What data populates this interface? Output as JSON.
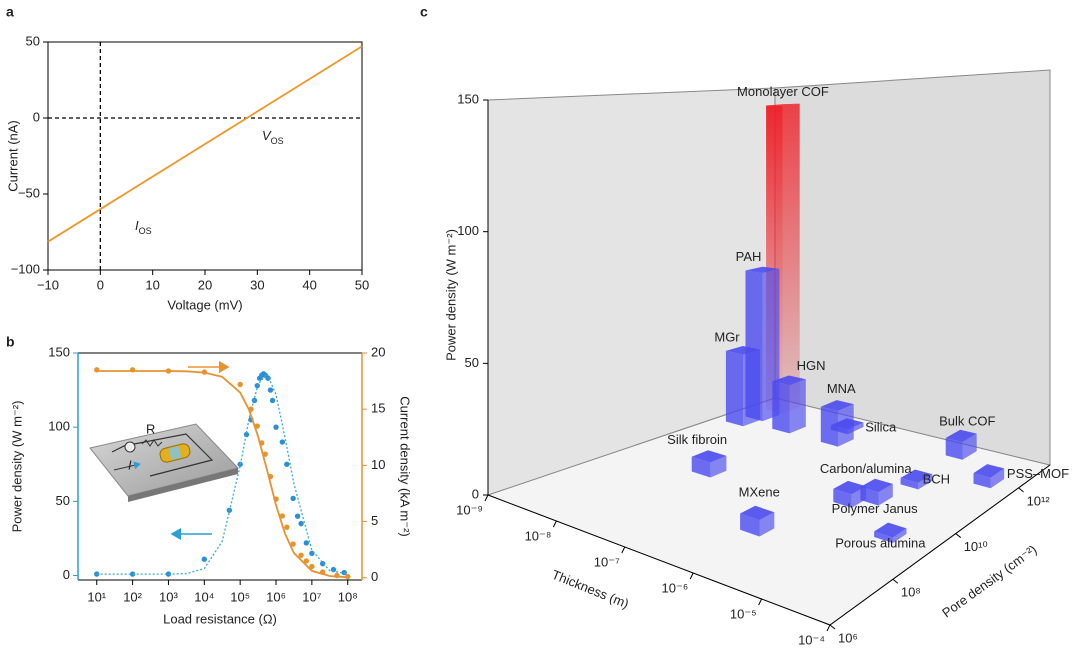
{
  "chart_data": [
    {
      "type": "line",
      "panel": "a",
      "x_label": "Voltage (mV)",
      "y_label": "Current (nA)",
      "xlim": [
        -10,
        50
      ],
      "ylim": [
        -100,
        50
      ],
      "xticks": [
        {
          "value": -10,
          "label": "−10"
        },
        0,
        10,
        20,
        30,
        40,
        50
      ],
      "yticks": [
        {
          "value": -100,
          "label": "−100"
        },
        {
          "value": -50,
          "label": "−50"
        },
        0,
        50
      ],
      "vline": 0,
      "hline": 0,
      "series": [
        {
          "color": "#f0962a",
          "x": [
            -10,
            0,
            28,
            50
          ],
          "values": [
            -81.4,
            -60,
            0,
            47.1
          ]
        }
      ],
      "annotations": [
        {
          "text": "V",
          "sub": "OS"
        },
        {
          "text": "I",
          "sub": "OS"
        }
      ]
    },
    {
      "type": "scatter",
      "panel": "b",
      "x_label": "Load resistance (Ω)",
      "y_label": "Power density (W m⁻²)",
      "y2_label": "Current density (kA m⁻²)",
      "log_x": true,
      "xlim": [
        3,
        250000000
      ],
      "ylim": [
        -3,
        150
      ],
      "y2lim": [
        -0.2,
        20
      ],
      "xticks": [
        {
          "value": 10,
          "label": "10¹"
        },
        {
          "value": 100,
          "label": "10²"
        },
        {
          "value": 1000,
          "label": "10³"
        },
        {
          "value": 10000,
          "label": "10⁴"
        },
        {
          "value": 100000,
          "label": "10⁵"
        },
        {
          "value": 1000000,
          "label": "10⁶"
        },
        {
          "value": 10000000,
          "label": "10⁷"
        },
        {
          "value": 100000000,
          "label": "10⁸"
        }
      ],
      "yticks": [
        0,
        50,
        100,
        150
      ],
      "y2ticks": [
        0,
        5,
        10,
        15,
        20
      ],
      "y_color": "#2a9fd6",
      "y2_color": "#e8922e",
      "series": [
        {
          "kind": "scatter",
          "axis": "y",
          "color": "#2a8fd6",
          "x": [
            10,
            100,
            1000,
            10000,
            50000,
            100000,
            150000,
            200000,
            250000,
            300000,
            350000,
            400000,
            450000,
            500000,
            600000,
            700000,
            800000,
            1000000,
            1500000,
            2000000,
            3000000,
            4000000,
            5000000,
            7000000,
            10000000,
            20000000,
            40000000,
            80000000
          ],
          "values": [
            1,
            1,
            1,
            11,
            44,
            75,
            95,
            105,
            118,
            128,
            133,
            135,
            136,
            135,
            133,
            125,
            118,
            100,
            90,
            75,
            52,
            40,
            35,
            22,
            15,
            8,
            4,
            2
          ]
        },
        {
          "kind": "line",
          "dash": true,
          "axis": "y",
          "color": "#3aa8d8",
          "x": [
            10,
            100,
            1000,
            3162,
            10000,
            31623,
            100000,
            177828,
            316228,
            562341,
            1000000,
            1778279,
            3162278,
            10000000,
            31622777,
            100000000
          ],
          "values": [
            1,
            1,
            1,
            1.3,
            4.7,
            23,
            74,
            106,
            129,
            136,
            122,
            93,
            62,
            17,
            3.3,
            1.2
          ]
        },
        {
          "kind": "scatter",
          "axis": "y2",
          "color": "#e8922e",
          "x": [
            10,
            100,
            1000,
            10000,
            100000,
            200000,
            300000,
            400000,
            500000,
            700000,
            1000000,
            1500000,
            2000000,
            3000000,
            5000000,
            7000000,
            10000000,
            20000000,
            50000000,
            100000000
          ],
          "values": [
            18.5,
            18.5,
            18.4,
            18.3,
            17.2,
            15,
            13.5,
            12,
            11,
            9,
            7,
            5.5,
            4.5,
            3,
            2,
            1.5,
            1,
            0.5,
            0.2,
            0.1
          ]
        },
        {
          "kind": "line",
          "axis": "y2",
          "color": "#e8922e",
          "x": [
            10,
            100,
            1000,
            3162,
            10000,
            31623,
            100000,
            177828,
            316228,
            562341,
            1000000,
            1778279,
            3162278,
            10000000,
            31622777,
            100000000
          ],
          "values": [
            18.4,
            18.4,
            18.4,
            18.37,
            18.26,
            17.88,
            16.48,
            14.94,
            12.57,
            9.56,
            6.47,
            3.93,
            2.2,
            0.61,
            0.157,
            0.04
          ]
        }
      ],
      "annotations": [
        {
          "text": "R"
        },
        {
          "text": "I"
        }
      ]
    },
    {
      "type": "bar3d",
      "panel": "c",
      "x_label": "Thickness (m)",
      "y_label": "Pore density (cm⁻²)",
      "z_label": "Power density (W m⁻²)",
      "log_x": true,
      "log_y": true,
      "xlim": [
        1e-09,
        0.0001
      ],
      "ylim": [
        1000000,
        10000000000000
      ],
      "zlim": [
        0,
        150
      ],
      "xticks": [
        {
          "value": 1e-09,
          "label": "10⁻⁹"
        },
        {
          "value": 1e-08,
          "label": "10⁻⁸"
        },
        {
          "value": 1e-07,
          "label": "10⁻⁷"
        },
        {
          "value": 1e-06,
          "label": "10⁻⁶"
        },
        {
          "value": 1e-05,
          "label": "10⁻⁵"
        },
        {
          "value": 0.0001,
          "label": "10⁻⁴"
        }
      ],
      "yticks": [
        {
          "value": 1000000,
          "label": "10⁶"
        },
        {
          "value": 100000000,
          "label": "10⁸"
        },
        {
          "value": 10000000000,
          "label": "10¹⁰"
        },
        {
          "value": 1000000000000,
          "label": "10¹²"
        }
      ],
      "zticks": [
        0,
        50,
        100,
        150
      ],
      "bars": [
        {
          "name": "Monolayer COF",
          "x": 2.5e-09,
          "y": 4500000000000,
          "value": 142,
          "color": "#ee1c24",
          "gradient": true
        },
        {
          "name": "PAH",
          "x": 2.5e-09,
          "y": 1400000000000,
          "value": 67,
          "color": "#4a4af0"
        },
        {
          "name": "MGr",
          "x": 2.2e-09,
          "y": 550000000000,
          "value": 32,
          "color": "#4a4af0"
        },
        {
          "name": "HGN",
          "x": 1e-08,
          "y": 900000000000,
          "value": 21,
          "color": "#4a4af0"
        },
        {
          "name": "Silica",
          "x": 4.5e-08,
          "y": 3200000000000,
          "value": 2,
          "color": "#4a4af0"
        },
        {
          "name": "MNA",
          "x": 7e-08,
          "y": 900000000000,
          "value": 15,
          "color": "#4a4af0"
        },
        {
          "name": "Bulk COF",
          "x": 4e-06,
          "y": 4500000000000,
          "value": 7,
          "color": "#4a4af0"
        },
        {
          "name": "Silk fibroin",
          "x": 1.8e-08,
          "y": 3200000000,
          "value": 6,
          "color": "#4a4af0"
        },
        {
          "name": "BCH",
          "x": 4.5e-06,
          "y": 180000000000,
          "value": 2.5,
          "color": "#4a4af0"
        },
        {
          "name": "PSS–MOF",
          "x": 3.2e-05,
          "y": 900000000000,
          "value": 4,
          "color": "#4a4af0"
        },
        {
          "name": "Carbon/alumina",
          "x": 1.8e-06,
          "y": 10000000000,
          "value": 5,
          "color": "#4a4af0"
        },
        {
          "name": "Polymer Janus",
          "x": 3.2e-06,
          "y": 22000000000,
          "value": 5,
          "color": "#4a4af0"
        },
        {
          "name": "MXene",
          "x": 7e-07,
          "y": 126000000,
          "value": 6,
          "color": "#4a4af0"
        },
        {
          "name": "Porous alumina",
          "x": 2e-05,
          "y": 2000000000,
          "value": 2,
          "color": "#4a4af0"
        }
      ]
    }
  ]
}
